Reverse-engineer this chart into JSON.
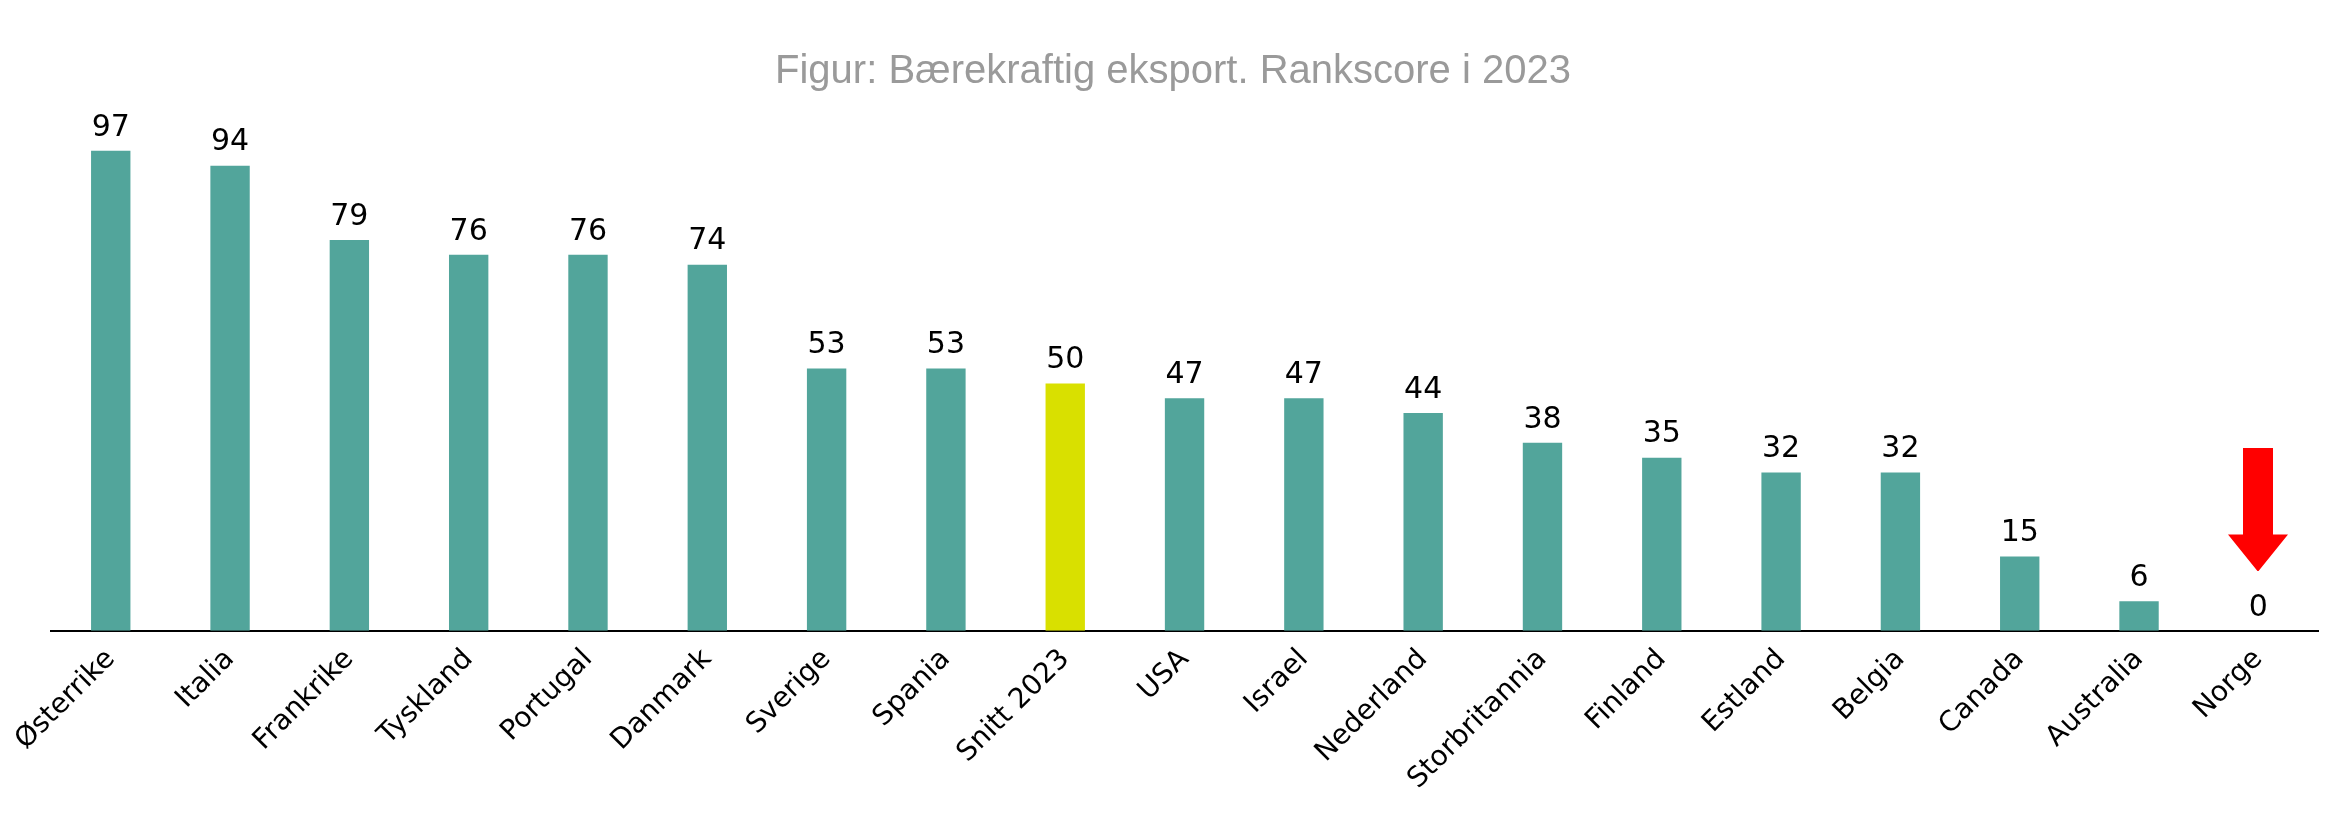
{
  "chart_data": {
    "type": "bar",
    "title": "Figur: Bærekraftig eksport. Rankscore i 2023",
    "categories": [
      "Østerrike",
      "Italia",
      "Frankrike",
      "Tyskland",
      "Portugal",
      "Danmark",
      "Sverige",
      "Spania",
      "Snitt 2023",
      "USA",
      "Israel",
      "Nederland",
      "Storbritannia",
      "Finland",
      "Estland",
      "Belgia",
      "Canada",
      "Australia",
      "Norge"
    ],
    "values": [
      97,
      94,
      79,
      76,
      76,
      74,
      53,
      53,
      50,
      47,
      47,
      44,
      38,
      35,
      32,
      32,
      15,
      6,
      0
    ],
    "colors": [
      "#52a59b",
      "#52a59b",
      "#52a59b",
      "#52a59b",
      "#52a59b",
      "#52a59b",
      "#52a59b",
      "#52a59b",
      "#d9e000",
      "#52a59b",
      "#52a59b",
      "#52a59b",
      "#52a59b",
      "#52a59b",
      "#52a59b",
      "#52a59b",
      "#52a59b",
      "#52a59b",
      "#52a59b"
    ],
    "grid": false,
    "legend": false,
    "data_labels": true,
    "tick_labels": "x"
  }
}
